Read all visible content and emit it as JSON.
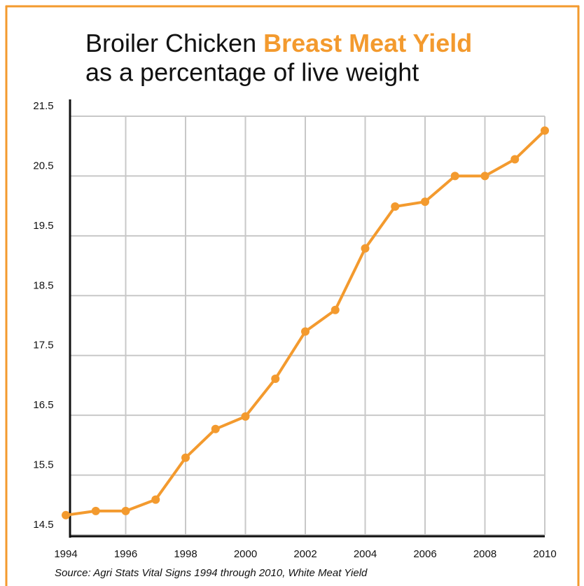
{
  "chart_data": {
    "type": "line",
    "title": "Broiler Chicken",
    "title_highlight": "Breast Meat Yield",
    "subtitle": "as a percentage of live weight",
    "source": "Source: Agri Stats Vital Signs 1994 through 2010, White Meat Yield",
    "x": [
      1994,
      1995,
      1996,
      1997,
      1998,
      1999,
      2000,
      2001,
      2002,
      2003,
      2004,
      2005,
      2006,
      2007,
      2008,
      2009,
      2010
    ],
    "series": [
      {
        "color": "#f39a2e",
        "values": [
          14.83,
          14.9,
          14.9,
          15.09,
          15.79,
          16.27,
          16.48,
          17.11,
          17.9,
          18.26,
          19.29,
          19.99,
          20.07,
          20.5,
          20.5,
          20.78,
          21.26
        ]
      }
    ],
    "xlim": [
      1994,
      2010
    ],
    "xticks": [
      1994,
      1996,
      1998,
      2000,
      2002,
      2004,
      2006,
      2008,
      2010
    ],
    "ylim": [
      14.5,
      21.5
    ],
    "yticks": [
      14.5,
      15.5,
      16.5,
      17.5,
      18.5,
      19.5,
      20.5,
      21.5
    ],
    "grid": true,
    "highlight_color": "#f39a2e"
  }
}
